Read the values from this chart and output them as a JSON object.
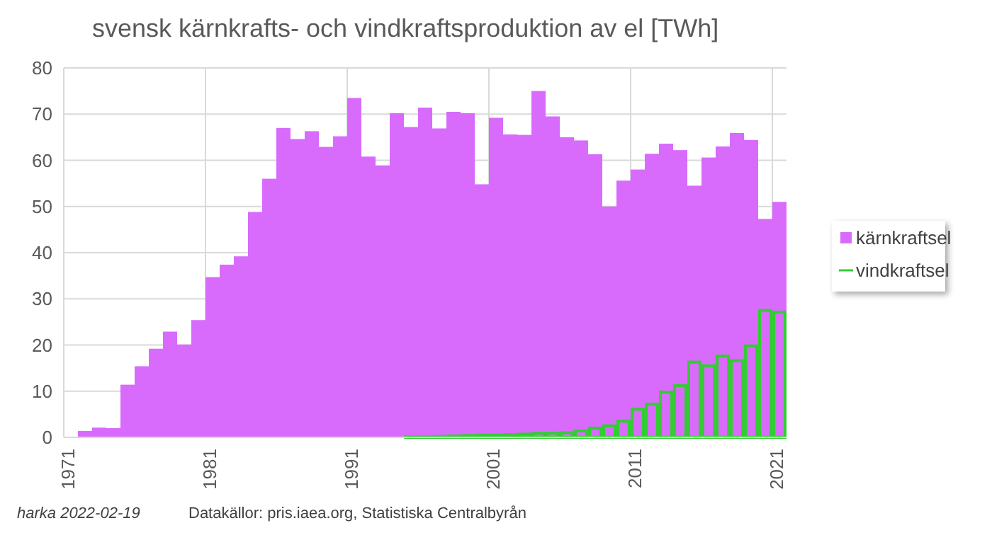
{
  "chart_data": {
    "type": "bar",
    "title": "svensk kärnkrafts- och vindkraftsproduktion av el [TWh]",
    "categories": [
      "1971",
      null,
      null,
      null,
      null,
      null,
      null,
      null,
      null,
      null,
      "1981",
      null,
      null,
      null,
      null,
      null,
      null,
      null,
      null,
      null,
      "1991",
      null,
      null,
      null,
      null,
      null,
      null,
      null,
      null,
      null,
      "2001",
      null,
      null,
      null,
      null,
      null,
      null,
      null,
      null,
      null,
      "2011",
      null,
      null,
      null,
      null,
      null,
      null,
      null,
      null,
      null,
      "2021"
    ],
    "series": [
      {
        "name": "kärnkraftsel",
        "color": "#d86bfc",
        "values": [
          0,
          1.4,
          2.1,
          2.0,
          11.4,
          15.4,
          19.2,
          22.9,
          20.1,
          25.4,
          34.7,
          37.4,
          39.2,
          48.8,
          56.0,
          67.0,
          64.6,
          66.3,
          62.9,
          65.2,
          73.5,
          60.8,
          58.9,
          70.2,
          67.2,
          71.4,
          66.9,
          70.5,
          70.2,
          54.8,
          69.2,
          65.6,
          65.5,
          75.0,
          69.5,
          65.0,
          64.3,
          61.3,
          50.0,
          55.6,
          58.0,
          61.4,
          63.6,
          62.2,
          54.5,
          60.6,
          63.0,
          65.9,
          64.4,
          47.3,
          51.0
        ]
      },
      {
        "name": "vindkraftsel",
        "color": "#33cc33",
        "values": [
          0,
          0,
          0,
          0,
          0,
          0,
          0,
          0,
          0,
          0,
          0,
          0,
          0,
          0,
          0,
          0,
          0,
          0,
          0,
          0,
          0,
          0,
          0,
          0,
          0.1,
          0.1,
          0.2,
          0.3,
          0.4,
          0.5,
          0.5,
          0.6,
          0.7,
          0.9,
          0.9,
          1.0,
          1.4,
          2.0,
          2.5,
          3.5,
          6.1,
          7.2,
          9.8,
          11.2,
          16.3,
          15.5,
          17.6,
          16.6,
          19.8,
          27.5,
          27.1
        ]
      }
    ],
    "ylim": [
      0,
      80
    ],
    "yticks": [
      0,
      10,
      20,
      30,
      40,
      50,
      60,
      70,
      80
    ],
    "grid": true,
    "legend": "right",
    "annotations": [
      "harka 2022-02-19",
      "Datakällor: pris.iaea.org, Statistiska Centralbyrån"
    ]
  }
}
